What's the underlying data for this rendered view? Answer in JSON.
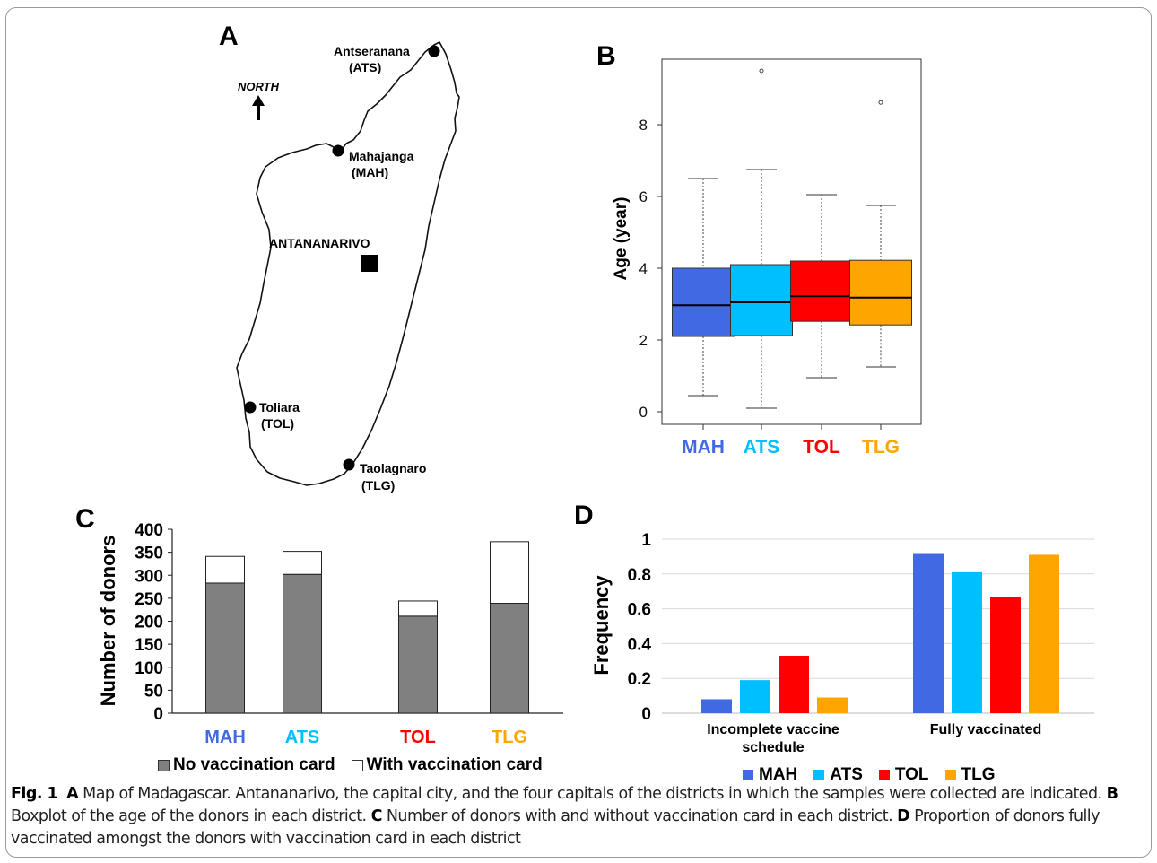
{
  "figure": {
    "panel_labels": {
      "a": "A",
      "b": "B",
      "c": "C",
      "d": "D"
    },
    "colors": {
      "MAH": "#4169e1",
      "ATS": "#00bfff",
      "TOL": "#ff0000",
      "TLG": "#ffa500",
      "no_card": "#808080",
      "with_card": "#ffffff"
    }
  },
  "map": {
    "north_label": "NORTH",
    "capital_label": "ANTANANARIVO",
    "cities": [
      {
        "name": "Antseranana",
        "code": "(ATS)"
      },
      {
        "name": "Mahajanga",
        "code": "(MAH)"
      },
      {
        "name": "Toliara",
        "code": "(TOL)"
      },
      {
        "name": "Taolagnaro",
        "code": "(TLG)"
      }
    ]
  },
  "chart_data": [
    {
      "panel": "B",
      "type": "box",
      "ylabel": "Age (year)",
      "ylim": [
        0,
        9.8
      ],
      "yticks": [
        "0",
        "2",
        "4",
        "6",
        "8"
      ],
      "categories": [
        "MAH",
        "ATS",
        "TOL",
        "TLG"
      ],
      "boxes": [
        {
          "min": 0.45,
          "q1": 2.1,
          "median": 2.97,
          "q3": 4.0,
          "max": 6.5,
          "outliers": []
        },
        {
          "min": 0.1,
          "q1": 2.12,
          "median": 3.05,
          "q3": 4.1,
          "max": 6.75,
          "outliers": [
            9.5
          ]
        },
        {
          "min": 0.95,
          "q1": 2.52,
          "median": 3.22,
          "q3": 4.2,
          "max": 6.05,
          "outliers": []
        },
        {
          "min": 1.25,
          "q1": 2.42,
          "median": 3.18,
          "q3": 4.22,
          "max": 5.75,
          "outliers": [
            8.62
          ]
        }
      ]
    },
    {
      "panel": "C",
      "type": "bar",
      "stacked": true,
      "ylabel": "Number of donors",
      "ylim": [
        0,
        400
      ],
      "yticks": [
        "0",
        "50",
        "100",
        "150",
        "200",
        "250",
        "300",
        "350",
        "400"
      ],
      "categories": [
        "MAH",
        "ATS",
        "TOL",
        "TLG"
      ],
      "series": [
        {
          "name": "No vaccination card",
          "values": [
            283,
            302,
            211,
            239
          ]
        },
        {
          "name": "With vaccination card",
          "values": [
            58,
            50,
            33,
            134
          ]
        }
      ]
    },
    {
      "panel": "D",
      "type": "bar",
      "ylabel": "Frequency",
      "ylim": [
        0,
        1
      ],
      "yticks": [
        "0",
        "0.2",
        "0.4",
        "0.6",
        "0.8",
        "1"
      ],
      "categories": [
        "Incomplete vaccine schedule",
        "Fully vaccinated"
      ],
      "category_lines": [
        [
          "Incomplete vaccine",
          "schedule"
        ],
        [
          "Fully vaccinated"
        ]
      ],
      "series": [
        {
          "name": "MAH",
          "values": [
            0.08,
            0.92
          ]
        },
        {
          "name": "ATS",
          "values": [
            0.19,
            0.81
          ]
        },
        {
          "name": "TOL",
          "values": [
            0.33,
            0.67
          ]
        },
        {
          "name": "TLG",
          "values": [
            0.09,
            0.91
          ]
        }
      ]
    }
  ],
  "caption": {
    "fig_label": "Fig. 1",
    "parts": [
      {
        "letter": "A",
        "text": " Map of Madagascar. Antananarivo, the capital city, and the four capitals of the districts in which the samples were collected are indicated. "
      },
      {
        "letter": "B",
        "text": " Boxplot of the age of the donors in each district. "
      },
      {
        "letter": "C",
        "text": " Number of donors with and without vaccination card in each district. "
      },
      {
        "letter": "D",
        "text": " Proportion of donors fully vaccinated amongst the donors with vaccination card in each district"
      }
    ]
  }
}
